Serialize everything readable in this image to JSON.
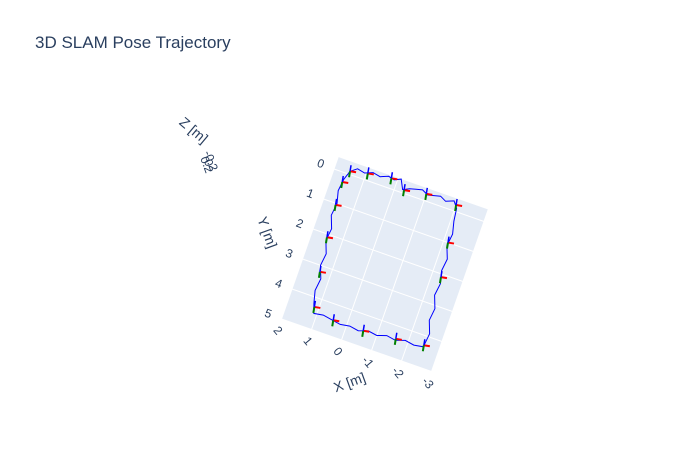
{
  "chart_data": {
    "type": "scatter3d",
    "title": "3D SLAM Pose Trajectory",
    "xlabel": "X [m]",
    "ylabel": "Y [m]",
    "zlabel": "Z [m]",
    "x_ticks": [
      "-3",
      "-2",
      "-1",
      "0",
      "1",
      "2"
    ],
    "y_ticks": [
      "0",
      "1",
      "2",
      "3",
      "4",
      "5"
    ],
    "z_ticks": [
      "0.2",
      "0",
      "-0.2"
    ],
    "xlim": [
      -3,
      2
    ],
    "ylim": [
      -0.4,
      5
    ],
    "grid": true,
    "colors": {
      "trajectory": "#0000ff",
      "x_axis_marker": "#ff0000",
      "y_axis_marker": "#008000",
      "z_axis_marker": "#0000ff",
      "plot_background": "#e5ecf6",
      "grid": "#ffffff",
      "text": "#2a3f5f"
    },
    "trajectory": [
      {
        "x": 1.5,
        "y": -0.1
      },
      {
        "x": 1.3,
        "y": -0.25
      },
      {
        "x": 1.05,
        "y": -0.2
      },
      {
        "x": 0.8,
        "y": -0.3
      },
      {
        "x": 0.55,
        "y": -0.25
      },
      {
        "x": 0.3,
        "y": -0.35
      },
      {
        "x": 0.1,
        "y": -0.3
      },
      {
        "x": -0.1,
        "y": -0.4
      },
      {
        "x": -0.25,
        "y": -0.1
      },
      {
        "x": -0.45,
        "y": -0.2
      },
      {
        "x": -0.65,
        "y": -0.25
      },
      {
        "x": -0.85,
        "y": -0.3
      },
      {
        "x": -1.05,
        "y": -0.2
      },
      {
        "x": -1.25,
        "y": -0.25
      },
      {
        "x": -1.45,
        "y": -0.3
      },
      {
        "x": -1.65,
        "y": -0.2
      },
      {
        "x": -1.9,
        "y": -0.3
      },
      {
        "x": -2.05,
        "y": -0.1
      },
      {
        "x": -2.1,
        "y": 0.3
      },
      {
        "x": -2.2,
        "y": 0.7
      },
      {
        "x": -2.15,
        "y": 1.1
      },
      {
        "x": -2.3,
        "y": 1.5
      },
      {
        "x": -2.25,
        "y": 1.9
      },
      {
        "x": -2.35,
        "y": 2.3
      },
      {
        "x": -2.3,
        "y": 2.7
      },
      {
        "x": -2.45,
        "y": 3.1
      },
      {
        "x": -2.4,
        "y": 3.5
      },
      {
        "x": -2.55,
        "y": 3.9
      },
      {
        "x": -2.5,
        "y": 4.35
      },
      {
        "x": -2.2,
        "y": 4.4
      },
      {
        "x": -1.9,
        "y": 4.35
      },
      {
        "x": -1.6,
        "y": 4.45
      },
      {
        "x": -1.3,
        "y": 4.4
      },
      {
        "x": -1.0,
        "y": 4.5
      },
      {
        "x": -0.7,
        "y": 4.45
      },
      {
        "x": -0.4,
        "y": 4.55
      },
      {
        "x": -0.1,
        "y": 4.5
      },
      {
        "x": 0.2,
        "y": 4.55
      },
      {
        "x": 0.5,
        "y": 4.5
      },
      {
        "x": 0.8,
        "y": 4.45
      },
      {
        "x": 1.1,
        "y": 4.5
      },
      {
        "x": 1.2,
        "y": 4.2
      },
      {
        "x": 1.3,
        "y": 3.8
      },
      {
        "x": 1.25,
        "y": 3.4
      },
      {
        "x": 1.4,
        "y": 3.0
      },
      {
        "x": 1.35,
        "y": 2.6
      },
      {
        "x": 1.5,
        "y": 2.2
      },
      {
        "x": 1.45,
        "y": 1.8
      },
      {
        "x": 1.6,
        "y": 1.4
      },
      {
        "x": 1.55,
        "y": 1.0
      },
      {
        "x": 1.65,
        "y": 0.6
      },
      {
        "x": 1.6,
        "y": 0.2
      },
      {
        "x": 1.5,
        "y": -0.1
      }
    ],
    "poses": [
      {
        "x": 1.5,
        "y": -0.1
      },
      {
        "x": 0.95,
        "y": -0.22
      },
      {
        "x": 0.2,
        "y": -0.32
      },
      {
        "x": -0.3,
        "y": -0.1
      },
      {
        "x": -1.0,
        "y": -0.22
      },
      {
        "x": -2.0,
        "y": -0.2
      },
      {
        "x": -2.15,
        "y": 1.0
      },
      {
        "x": -2.3,
        "y": 2.1
      },
      {
        "x": -2.5,
        "y": 4.3
      },
      {
        "x": -1.6,
        "y": 4.4
      },
      {
        "x": -0.55,
        "y": 4.5
      },
      {
        "x": 0.45,
        "y": 4.5
      },
      {
        "x": 1.15,
        "y": 4.3
      },
      {
        "x": 1.35,
        "y": 3.2
      },
      {
        "x": 1.5,
        "y": 2.1
      },
      {
        "x": 1.58,
        "y": 1.05
      },
      {
        "x": 1.62,
        "y": 0.3
      }
    ]
  }
}
